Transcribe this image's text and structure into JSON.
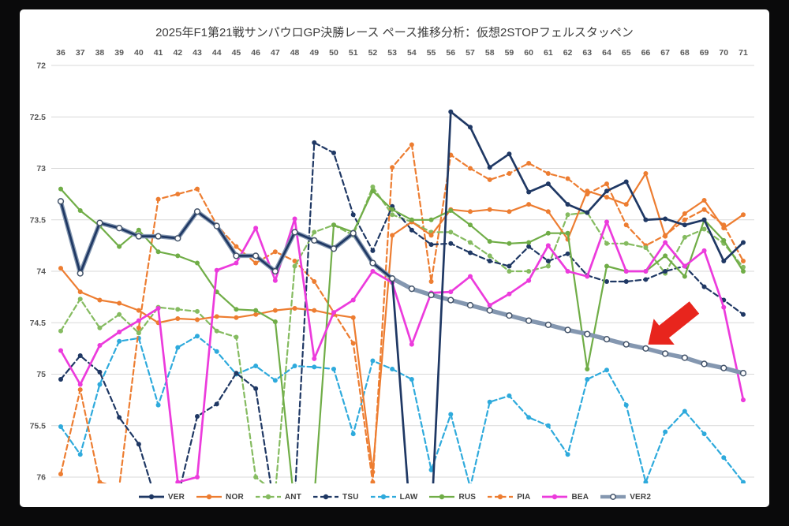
{
  "window": {
    "title": "2025年F1第21戦サンパウロGP決勝レース ペース推移分析：仮想2STOPフェルスタッペン"
  },
  "chart_data": {
    "type": "line",
    "title": "2025年F1第21戦サンパウロGP決勝レース ペース推移分析：仮想2STOPフェルスタッペン",
    "xlabel": "",
    "ylabel": "",
    "x": [
      36,
      37,
      38,
      39,
      40,
      41,
      42,
      43,
      44,
      45,
      46,
      47,
      48,
      49,
      50,
      51,
      52,
      53,
      54,
      55,
      56,
      57,
      58,
      59,
      60,
      61,
      62,
      63,
      64,
      65,
      66,
      67,
      68,
      69,
      70,
      71
    ],
    "x_axis": {
      "position": "top",
      "grid": false
    },
    "y_axis": {
      "min": 72,
      "max": 76,
      "step": 0.5,
      "inverted": true,
      "grid": true,
      "tick_labels": [
        "72",
        "72.5",
        "73",
        "73.5",
        "74",
        "74.5",
        "75",
        "75.5",
        "76"
      ]
    },
    "grid_color": "#d9d9d9",
    "legend_position": "bottom",
    "plot_bg": "#ffffff",
    "annotation": {
      "type": "red-arrow",
      "target_series": "VER2",
      "target_lap": 66,
      "color": "#e8251d"
    },
    "series": [
      {
        "name": "VER",
        "color": "#1f3864",
        "dash": "solid",
        "width": 2.7,
        "values": [
          73.32,
          74.02,
          73.53,
          73.58,
          73.66,
          73.66,
          73.68,
          73.42,
          73.56,
          73.85,
          73.85,
          74.0,
          73.62,
          73.7,
          73.78,
          73.63,
          73.92,
          74.07,
          76.6,
          76.45,
          72.45,
          72.6,
          72.99,
          72.86,
          73.23,
          73.15,
          73.35,
          73.43,
          73.22,
          73.13,
          73.5,
          73.49,
          73.55,
          73.5,
          73.9,
          73.72
        ]
      },
      {
        "name": "NOR",
        "color": "#ed7d31",
        "dash": "solid",
        "width": 2.2,
        "values": [
          73.97,
          74.2,
          74.28,
          74.31,
          74.38,
          74.5,
          74.46,
          74.47,
          74.44,
          74.45,
          74.42,
          74.38,
          74.36,
          74.38,
          74.42,
          74.45,
          75.95,
          73.65,
          73.52,
          73.65,
          73.4,
          73.42,
          73.4,
          73.42,
          73.35,
          73.42,
          73.69,
          73.22,
          73.28,
          73.35,
          73.05,
          73.66,
          73.44,
          73.31,
          73.58,
          73.45
        ]
      },
      {
        "name": "ANT",
        "color": "#85bb60",
        "dash": "dashed",
        "width": 2.2,
        "values": [
          74.58,
          74.27,
          74.55,
          74.42,
          74.6,
          74.35,
          74.37,
          74.39,
          74.58,
          74.64,
          76.0,
          76.15,
          73.95,
          73.62,
          73.55,
          73.65,
          73.18,
          73.45,
          73.52,
          73.62,
          73.62,
          73.72,
          73.85,
          74.0,
          74.0,
          73.95,
          73.45,
          73.43,
          73.73,
          73.73,
          73.77,
          74.02,
          73.67,
          73.59,
          73.73,
          73.96
        ]
      },
      {
        "name": "TSU",
        "color": "#1f3864",
        "dash": "dashed",
        "width": 2.2,
        "values": [
          75.05,
          74.82,
          74.98,
          75.42,
          75.68,
          76.3,
          76.2,
          75.41,
          75.29,
          74.99,
          75.14,
          76.35,
          76.2,
          72.75,
          72.85,
          73.45,
          73.8,
          73.37,
          73.6,
          73.74,
          73.73,
          73.82,
          73.9,
          73.95,
          73.76,
          73.9,
          73.83,
          74.04,
          74.1,
          74.1,
          74.08,
          74.0,
          73.95,
          74.15,
          74.28,
          74.42
        ]
      },
      {
        "name": "LAW",
        "color": "#2eaadc",
        "dash": "dashed",
        "width": 2.2,
        "values": [
          75.51,
          75.78,
          75.1,
          74.68,
          74.65,
          75.3,
          74.74,
          74.63,
          74.78,
          75.0,
          74.92,
          75.06,
          74.92,
          74.93,
          74.95,
          75.58,
          74.87,
          74.95,
          75.05,
          75.93,
          75.39,
          76.1,
          75.27,
          75.21,
          75.42,
          75.5,
          75.78,
          75.05,
          74.96,
          75.3,
          76.05,
          75.56,
          75.36,
          75.58,
          75.81,
          76.05
        ]
      },
      {
        "name": "RUS",
        "color": "#70ad47",
        "dash": "solid",
        "width": 2.2,
        "values": [
          73.2,
          73.41,
          73.56,
          73.76,
          73.6,
          73.81,
          73.85,
          73.92,
          74.2,
          74.37,
          74.38,
          74.49,
          76.3,
          76.2,
          73.55,
          73.62,
          73.22,
          73.4,
          73.5,
          73.5,
          73.41,
          73.55,
          73.71,
          73.73,
          73.72,
          73.63,
          73.63,
          74.95,
          73.95,
          74.0,
          74.0,
          73.85,
          74.05,
          73.5,
          73.7,
          74.0
        ]
      },
      {
        "name": "PIA",
        "color": "#ed7d31",
        "dash": "dashed",
        "width": 2.2,
        "values": [
          75.97,
          75.15,
          76.05,
          76.1,
          74.55,
          73.3,
          73.25,
          73.2,
          73.55,
          73.76,
          73.92,
          73.81,
          73.9,
          74.1,
          74.4,
          74.7,
          76.05,
          72.99,
          72.77,
          74.1,
          72.87,
          73.0,
          73.11,
          73.05,
          72.95,
          73.05,
          73.1,
          73.25,
          73.15,
          73.55,
          73.75,
          73.65,
          73.5,
          73.4,
          73.55,
          73.9
        ]
      },
      {
        "name": "BEA",
        "color": "#ec3bdc",
        "dash": "solid",
        "width": 2.7,
        "values": [
          74.77,
          75.1,
          74.72,
          74.59,
          74.48,
          74.36,
          76.05,
          76.0,
          73.99,
          73.92,
          73.58,
          74.09,
          73.49,
          74.85,
          74.4,
          74.28,
          74.0,
          74.11,
          74.71,
          74.21,
          74.2,
          74.05,
          74.33,
          74.22,
          74.09,
          73.75,
          74.0,
          74.05,
          73.52,
          74.0,
          74.0,
          73.72,
          73.95,
          73.8,
          74.35,
          75.25
        ]
      },
      {
        "name": "VER2",
        "color": "#8497b0",
        "dash": "solid",
        "width": 5.5,
        "marker": "open",
        "values": [
          73.32,
          74.02,
          73.53,
          73.58,
          73.66,
          73.66,
          73.68,
          73.42,
          73.56,
          73.85,
          73.85,
          74.0,
          73.62,
          73.7,
          73.78,
          73.63,
          73.92,
          74.07,
          74.17,
          74.23,
          74.28,
          74.33,
          74.38,
          74.43,
          74.48,
          74.52,
          74.57,
          74.61,
          74.66,
          74.71,
          74.75,
          74.8,
          74.84,
          74.9,
          74.94,
          74.99
        ]
      }
    ]
  }
}
